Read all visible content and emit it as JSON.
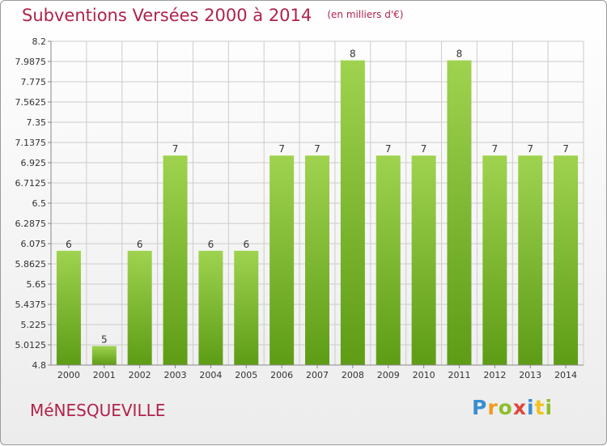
{
  "chart_data": {
    "type": "bar",
    "title": "Subventions Versées 2000 à 2014",
    "subtitle": "(en milliers d'€)",
    "categories": [
      "2000",
      "2001",
      "2002",
      "2003",
      "2004",
      "2005",
      "2006",
      "2007",
      "2008",
      "2009",
      "2010",
      "2011",
      "2012",
      "2013",
      "2014"
    ],
    "values": [
      6,
      5,
      6,
      7,
      6,
      6,
      7,
      7,
      8,
      7,
      7,
      8,
      7,
      7,
      7
    ],
    "ylim": [
      4.8,
      8.2
    ],
    "yticks": [
      "8.2",
      "7.9875",
      "7.775",
      "7.5625",
      "7.35",
      "7.1375",
      "6.925",
      "6.7125",
      "6.5",
      "6.2875",
      "6.075",
      "5.8625",
      "5.65",
      "5.4375",
      "5.225",
      "5.0125",
      "4.8"
    ],
    "grid": true,
    "colors": {
      "bar_top": "#9fd34f",
      "bar_bottom": "#5e9c16",
      "title": "#b0234a",
      "grid": "#cccccc"
    }
  },
  "footer": {
    "commune": "MéNESQUEVILLE"
  },
  "logo": {
    "text": "Proxiti"
  }
}
